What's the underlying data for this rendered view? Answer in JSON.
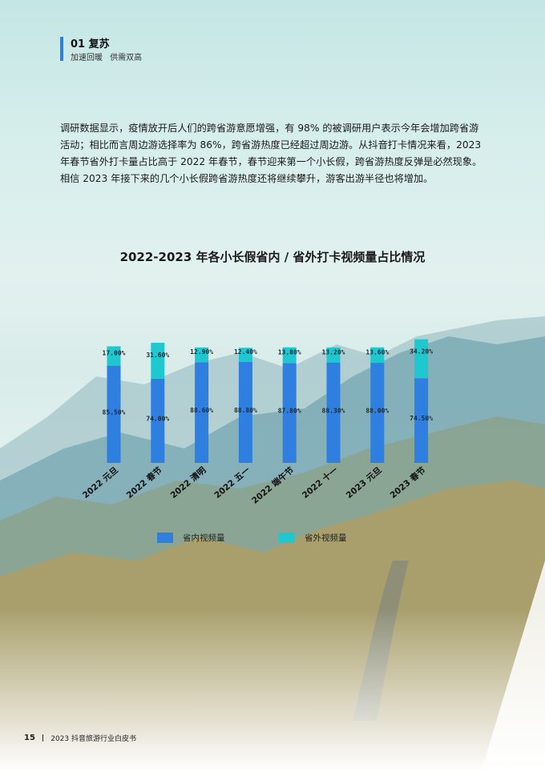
{
  "section": {
    "title": "01 复苏",
    "subtitle": "加速回暖  供需双高"
  },
  "body_text": "调研数据显示，疫情放开后人们的跨省游意愿增强，有 98% 的被调研用户表示今年会增加跨省游活动；相比而言周边游选择率为 86%，跨省游热度已经超过周边游。从抖音打卡情况来看，2023 年春节省外打卡量占比高于 2022 年春节，春节迎来第一个小长假，跨省游热度反弹是必然现象。相信 2023 年接下来的几个小长假跨省游热度还将继续攀升，游客出游半径也将增加。",
  "chart_title": "2022-2023 年各小长假省内 / 省外打卡视频量占比情况",
  "chart_data": {
    "type": "bar",
    "stacked": true,
    "title": "2022-2023 年各小长假省内 / 省外打卡视频量占比情况",
    "categories": [
      "2022 元旦",
      "2022 春节",
      "2022 清明",
      "2022 五一",
      "2022 端午节",
      "2022 十一",
      "2023 元旦",
      "2023 春节"
    ],
    "series": [
      {
        "name": "省内视频量",
        "values": [
          85.5,
          74.0,
          88.6,
          88.8,
          87.8,
          88.3,
          88.0,
          74.5
        ],
        "labels": [
          "85.50%",
          "74.00%",
          "88.60%",
          "88.80%",
          "87.80%",
          "88.30%",
          "88.00%",
          "74.50%"
        ],
        "color": "#2f7fe0"
      },
      {
        "name": "省外视频量",
        "values": [
          17.0,
          31.6,
          12.9,
          12.4,
          13.8,
          13.2,
          13.6,
          34.2
        ],
        "labels": [
          "17.00%",
          "31.60%",
          "12.90%",
          "12.40%",
          "13.80%",
          "13.20%",
          "13.60%",
          "34.20%"
        ],
        "color": "#1fc7cf"
      }
    ],
    "legend_position": "bottom",
    "grid": false
  },
  "legend": {
    "inner_label": "省内视频量",
    "outer_label": "省外视频量",
    "inner_color": "#2f7fe0",
    "outer_color": "#1fc7cf"
  },
  "footer": {
    "page_number": "15",
    "separator": "|",
    "doc_title": "2023 抖音旅游行业白皮书"
  }
}
